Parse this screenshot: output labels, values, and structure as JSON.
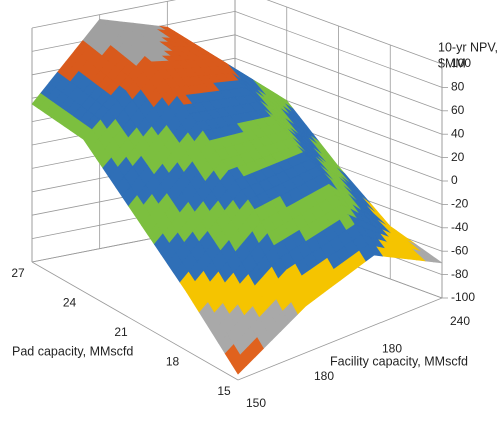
{
  "chart_data": {
    "type": "surface",
    "z_label": [
      "10-yr NPV,",
      "$MM"
    ],
    "x_label": "Facility capacity, MMscfd",
    "y_label": "Pad capacity, MMscfd",
    "x_categories": [
      "150",
      "180",
      "180",
      "240"
    ],
    "y_categories": [
      "15",
      "18",
      "21",
      "24",
      "27"
    ],
    "values": [
      [
        -95,
        -60,
        -40,
        -70
      ],
      [
        -50,
        0,
        10,
        -55
      ],
      [
        -10,
        45,
        40,
        -20
      ],
      [
        30,
        82,
        70,
        20
      ],
      [
        35,
        96,
        78,
        30
      ]
    ],
    "zlim": [
      -100,
      100
    ],
    "zticks": [
      -100,
      -80,
      -60,
      -40,
      -20,
      0,
      20,
      40,
      60,
      80,
      100
    ],
    "band_colors": [
      "#e0621e",
      "#a9a9a9",
      "#f5c400",
      "#2f6fb7",
      "#7cbf3f",
      "#2f6fb7",
      "#7cbf3f",
      "#2f6fb7",
      "#d95a1c",
      "#a0a0a0"
    ],
    "grid": true
  }
}
